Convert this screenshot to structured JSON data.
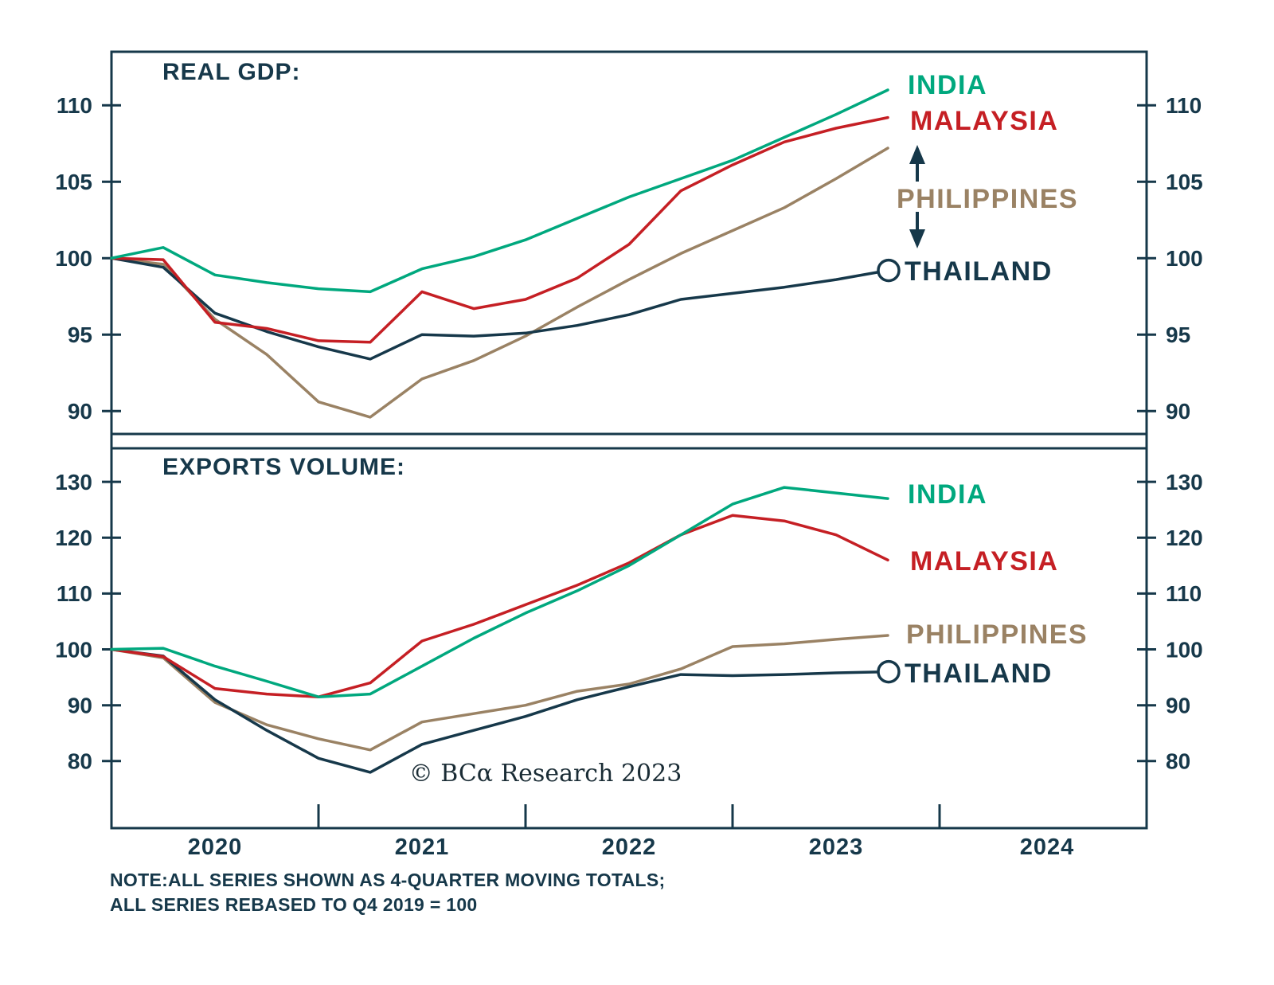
{
  "page": {
    "background": "#ffffff"
  },
  "colors": {
    "axis": "#16384a",
    "india": "#00a87e",
    "malaysia": "#c51f24",
    "philippines": "#9a8264",
    "thailand": "#16384a"
  },
  "chart_data": [
    {
      "type": "line",
      "title": "REAL GDP:",
      "x": [
        2020.0,
        2020.25,
        2020.5,
        2020.75,
        2021.0,
        2021.25,
        2021.5,
        2021.75,
        2022.0,
        2022.25,
        2022.5,
        2022.75,
        2023.0,
        2023.25,
        2023.5,
        2023.75
      ],
      "series": [
        {
          "name": "PHILIPPINES",
          "color": "#9a8264",
          "values": [
            100,
            99.6,
            96.0,
            93.7,
            90.6,
            89.6,
            92.1,
            93.3,
            94.9,
            96.8,
            98.6,
            100.3,
            101.8,
            103.3,
            105.2,
            107.2
          ]
        },
        {
          "name": "THAILAND",
          "color": "#16384a",
          "end_marker": "open-circle",
          "values": [
            100,
            99.4,
            96.4,
            95.2,
            94.2,
            93.4,
            95.0,
            94.9,
            95.1,
            95.6,
            96.3,
            97.3,
            97.7,
            98.1,
            98.6,
            99.2
          ]
        },
        {
          "name": "MALAYSIA",
          "color": "#c51f24",
          "values": [
            100,
            99.9,
            95.8,
            95.4,
            94.6,
            94.5,
            97.8,
            96.7,
            97.3,
            98.7,
            100.9,
            104.4,
            106.1,
            107.6,
            108.5,
            109.2
          ]
        },
        {
          "name": "INDIA",
          "color": "#00a87e",
          "values": [
            100,
            100.7,
            98.9,
            98.4,
            98.0,
            97.8,
            99.3,
            100.1,
            101.2,
            102.6,
            104.0,
            105.2,
            106.4,
            107.9,
            109.4,
            111.0
          ]
        }
      ],
      "xlim": [
        2020,
        2025
      ],
      "ylim": [
        88.5,
        113.5
      ],
      "yticks": [
        90,
        95,
        100,
        105,
        110
      ],
      "xticks_years": [],
      "grid": false,
      "tick_labels_both_sides": true,
      "annotation": "double-headed arrow pointing between MALAYSIA and THAILAND at the PHILIPPINES label",
      "legend_position": "right of line ends"
    },
    {
      "type": "line",
      "title": "EXPORTS VOLUME:",
      "x": [
        2020.0,
        2020.25,
        2020.5,
        2020.75,
        2021.0,
        2021.25,
        2021.5,
        2021.75,
        2022.0,
        2022.25,
        2022.5,
        2022.75,
        2023.0,
        2023.25,
        2023.5,
        2023.75
      ],
      "series": [
        {
          "name": "PHILIPPINES",
          "color": "#9a8264",
          "values": [
            100,
            98.5,
            90.5,
            86.5,
            84.0,
            82.0,
            87.0,
            88.5,
            90.0,
            92.5,
            93.8,
            96.5,
            100.5,
            101.0,
            101.8,
            102.5
          ]
        },
        {
          "name": "THAILAND",
          "color": "#16384a",
          "end_marker": "open-circle",
          "values": [
            100,
            98.8,
            91.0,
            85.5,
            80.5,
            78.0,
            83.0,
            85.5,
            88.0,
            91.0,
            93.3,
            95.5,
            95.3,
            95.5,
            95.8,
            96.0
          ]
        },
        {
          "name": "MALAYSIA",
          "color": "#c51f24",
          "values": [
            100,
            98.7,
            93.0,
            92.0,
            91.5,
            94.0,
            101.5,
            104.5,
            108.0,
            111.5,
            115.5,
            120.5,
            124.0,
            123.0,
            120.5,
            116.0
          ]
        },
        {
          "name": "INDIA",
          "color": "#00a87e",
          "values": [
            100,
            100.2,
            97.0,
            94.3,
            91.5,
            92.0,
            97.0,
            102.0,
            106.5,
            110.5,
            115.0,
            120.5,
            126.0,
            129.0,
            128.0,
            127.0
          ]
        }
      ],
      "xlim": [
        2020,
        2025
      ],
      "ylim": [
        68,
        136
      ],
      "yticks": [
        80,
        90,
        100,
        110,
        120,
        130
      ],
      "xticks_years": [
        2021,
        2022,
        2023,
        2024
      ],
      "grid": false,
      "tick_labels_both_sides": true,
      "legend_position": "right of line ends"
    }
  ],
  "x_axis": {
    "labels": [
      "2020",
      "2021",
      "2022",
      "2023",
      "2024"
    ]
  },
  "copyright": "© BCα Research 2023",
  "footer": {
    "note_line1": "NOTE:ALL SERIES SHOWN AS 4-QUARTER MOVING TOTALS;",
    "note_line2": "ALL SERIES REBASED TO Q4 2019 = 100"
  }
}
